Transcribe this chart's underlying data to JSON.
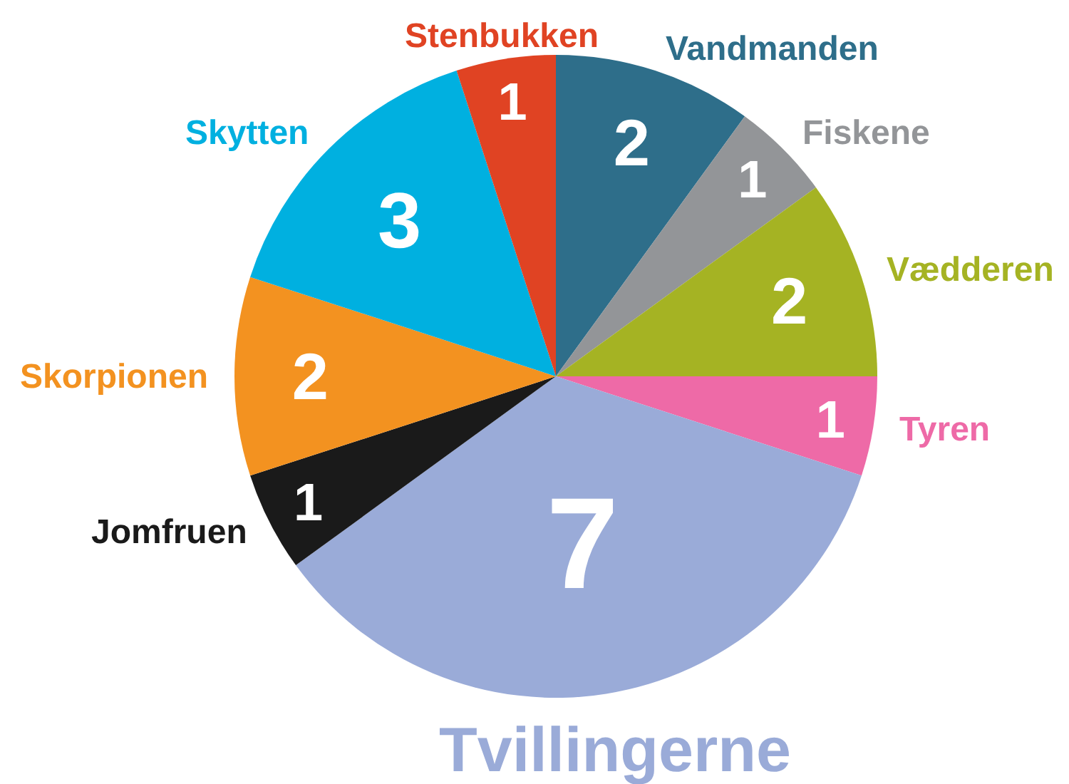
{
  "chart_data": {
    "type": "pie",
    "categories": [
      "Vandmanden",
      "Fiskene",
      "Vædderen",
      "Tyren",
      "Tvillingerne",
      "Jomfruen",
      "Skorpionen",
      "Skytten",
      "Stenbukken"
    ],
    "values": [
      2,
      1,
      2,
      1,
      7,
      1,
      2,
      3,
      1
    ],
    "colors": [
      "#2e6e8a",
      "#939598",
      "#a5b323",
      "#ee6aa7",
      "#9aabd8",
      "#1a1a1a",
      "#f39220",
      "#00b0e0",
      "#e04323"
    ],
    "data_labels": true,
    "legend": false
  }
}
